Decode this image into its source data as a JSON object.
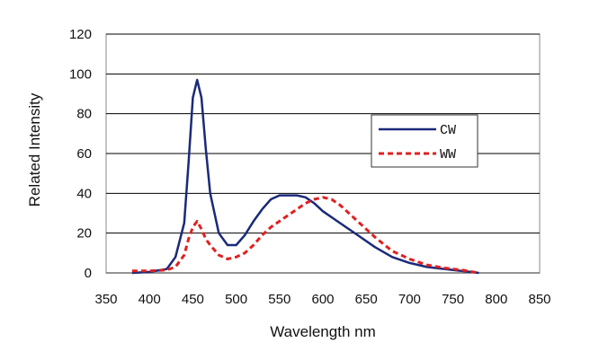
{
  "chart_data": {
    "type": "line",
    "title": "",
    "xlabel": "Wavelength nm",
    "ylabel": "Related Intensity",
    "xlim": [
      350,
      850
    ],
    "ylim": [
      0,
      120
    ],
    "x_ticks": [
      350,
      400,
      450,
      500,
      550,
      600,
      650,
      700,
      750,
      800,
      850
    ],
    "y_ticks": [
      0,
      20,
      40,
      60,
      80,
      100,
      120
    ],
    "grid": "horizontal",
    "legend_position": "right",
    "series": [
      {
        "name": "CW",
        "color": "#1a2a7a",
        "style": "solid",
        "x": [
          380,
          400,
          420,
          430,
          440,
          445,
          450,
          455,
          460,
          465,
          470,
          480,
          490,
          500,
          510,
          520,
          530,
          540,
          550,
          560,
          570,
          580,
          590,
          600,
          620,
          640,
          660,
          680,
          700,
          720,
          740,
          760,
          780
        ],
        "y": [
          0,
          0.5,
          2,
          8,
          25,
          55,
          88,
          97,
          88,
          62,
          40,
          20,
          14,
          14,
          19,
          26,
          32,
          37,
          39,
          39,
          39,
          38,
          35,
          31,
          25,
          19,
          13,
          8,
          5,
          3,
          2,
          1,
          0
        ]
      },
      {
        "name": "WW",
        "color": "#e02020",
        "style": "dashed",
        "x": [
          380,
          400,
          420,
          430,
          440,
          445,
          450,
          455,
          460,
          465,
          470,
          480,
          490,
          500,
          510,
          520,
          530,
          540,
          550,
          560,
          570,
          580,
          590,
          600,
          610,
          620,
          640,
          660,
          680,
          700,
          720,
          740,
          760,
          780
        ],
        "y": [
          1,
          1,
          1.5,
          3,
          9,
          17,
          23,
          26,
          22,
          17,
          14,
          9,
          7,
          8,
          10,
          14,
          19,
          23,
          26,
          29,
          32,
          35,
          37,
          38,
          37,
          34,
          26,
          18,
          11,
          7,
          4,
          2.5,
          1.5,
          0
        ]
      }
    ]
  }
}
